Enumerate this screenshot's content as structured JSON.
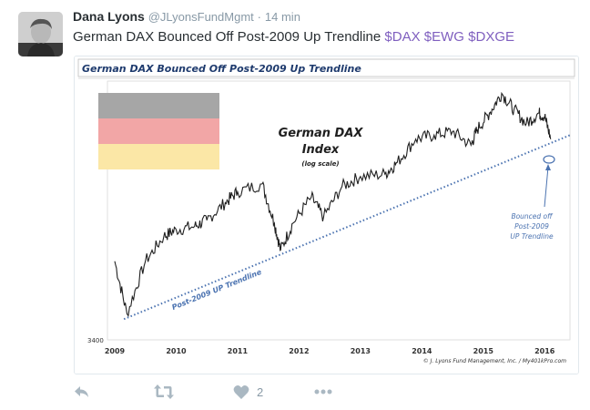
{
  "tweet": {
    "author_name": "Dana Lyons",
    "author_handle": "@JLyonsFundMgmt",
    "separator": "·",
    "timestamp": "14 min",
    "text": "German DAX Bounced Off Post-2009 Up Trendline",
    "cashtags": [
      "$DAX",
      "$EWG",
      "$DXGE"
    ]
  },
  "chart_image": {
    "title": "German DAX Bounced Off Post-2009 Up Trendline",
    "annotation_title_line1": "German DAX",
    "annotation_title_line2": "Index",
    "annotation_subtitle": "(log scale)",
    "trendline_label": "Post-2009 UP Trendline",
    "bounce_label_line1": "Bounced off",
    "bounce_label_line2": "Post-2009",
    "bounce_label_line3": "UP Trendline",
    "y_tick": "3400",
    "credit": "© J. Lyons Fund Management, Inc. / My401kPro.com",
    "flag_colors": [
      "#a6a6a6",
      "#f2a6a6",
      "#fbe7a6"
    ],
    "line_color": "#1f1f1f",
    "trendline_color": "#4a72b0"
  },
  "chart_data": {
    "type": "line",
    "title": "German DAX Bounced Off Post-2009 Up Trendline",
    "series": [
      {
        "name": "German DAX Index",
        "x": [
          2009.0,
          2009.2,
          2009.5,
          2009.8,
          2010.0,
          2010.3,
          2010.5,
          2010.8,
          2011.0,
          2011.4,
          2011.6,
          2011.7,
          2011.9,
          2012.2,
          2012.4,
          2012.7,
          2013.0,
          2013.4,
          2013.6,
          2013.9,
          2014.2,
          2014.5,
          2014.8,
          2014.9,
          2015.1,
          2015.3,
          2015.5,
          2015.7,
          2015.9,
          2016.0,
          2016.1
        ],
        "y": [
          4900,
          3700,
          4900,
          5600,
          5800,
          5900,
          6100,
          6700,
          7100,
          7400,
          6000,
          5200,
          6000,
          6900,
          6200,
          7300,
          7700,
          7800,
          8300,
          9400,
          9600,
          9800,
          9100,
          9900,
          10800,
          12000,
          11000,
          10200,
          10800,
          10600,
          9400
        ]
      }
    ],
    "x_ticks": [
      "2009",
      "2010",
      "2011",
      "2012",
      "2013",
      "2014",
      "2015",
      "2016"
    ],
    "y_scale": "log",
    "y_tick_labels": [
      "3400"
    ],
    "xlim": [
      2009.0,
      2016.1
    ],
    "ylim": [
      3400,
      12500
    ],
    "trendline": {
      "name": "Post-2009 UP Trendline",
      "x": [
        2009.15,
        2016.5
      ],
      "y": [
        3600,
        9600
      ],
      "style": "dotted"
    },
    "grid": false,
    "legend": "none"
  },
  "actions": {
    "reply_icon": "reply-icon",
    "retweet_icon": "retweet-icon",
    "like_icon": "heart-icon",
    "like_count": "2",
    "more_icon": "more-icon"
  }
}
